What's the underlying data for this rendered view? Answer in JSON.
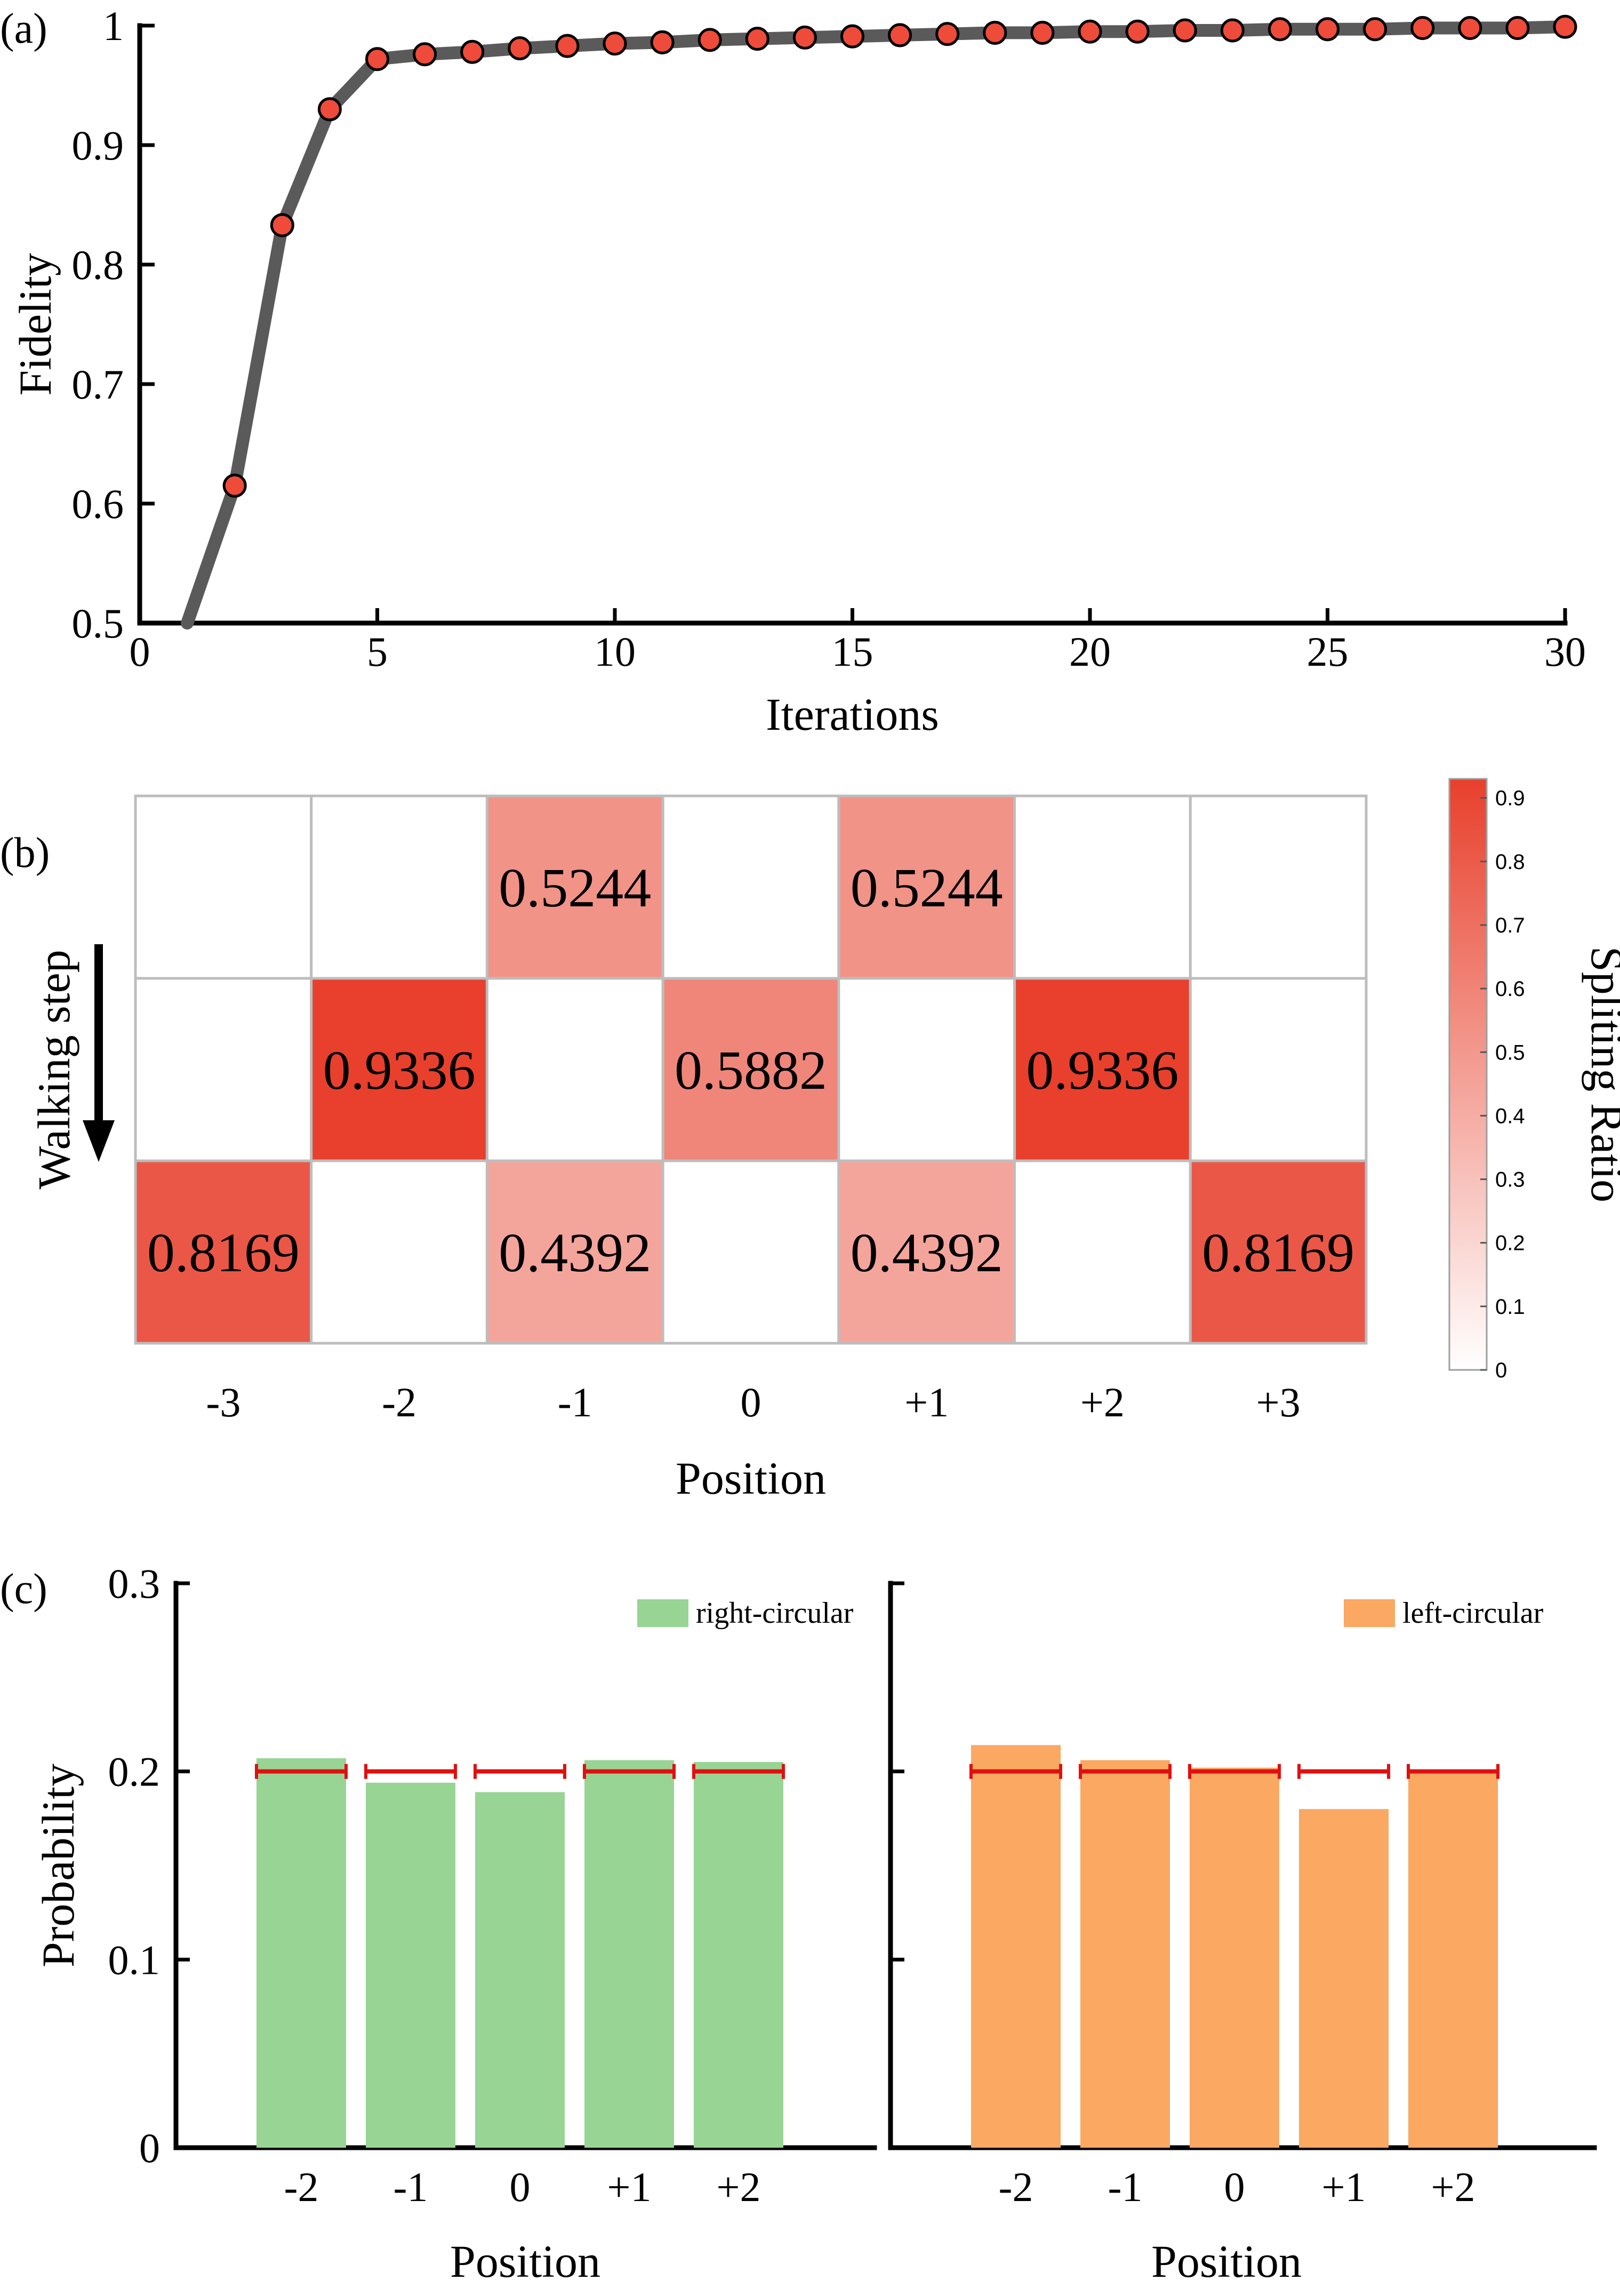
{
  "panels": {
    "a": {
      "label": "(a)"
    },
    "b": {
      "label": "(b)"
    },
    "c": {
      "label": "(c)"
    }
  },
  "colors": {
    "line": "#5a5a5a",
    "marker_fill": "#ee4b3a",
    "heat_max": "#e8402c",
    "grid": "#bdbdbd",
    "green": "#98d494",
    "orange": "#faa862",
    "ref_line": "#e01010"
  },
  "chart_data": [
    {
      "id": "a",
      "type": "line",
      "xlabel": "Iterations",
      "ylabel": "Fidelity",
      "xlim": [
        0,
        30
      ],
      "ylim": [
        0.5,
        1
      ],
      "xticks": [
        "0",
        "5",
        "10",
        "15",
        "20",
        "25",
        "30"
      ],
      "yticks": [
        "0.5",
        "0.6",
        "0.7",
        "0.8",
        "0.9",
        "1"
      ],
      "x": [
        1,
        2,
        3,
        4,
        5,
        6,
        7,
        8,
        9,
        10,
        11,
        12,
        13,
        14,
        15,
        16,
        17,
        18,
        19,
        20,
        21,
        22,
        23,
        24,
        25,
        26,
        27,
        28,
        29,
        30
      ],
      "y": [
        0.5,
        0.615,
        0.833,
        0.93,
        0.972,
        0.976,
        0.978,
        0.981,
        0.983,
        0.985,
        0.986,
        0.988,
        0.989,
        0.99,
        0.991,
        0.992,
        0.993,
        0.994,
        0.994,
        0.995,
        0.995,
        0.996,
        0.996,
        0.997,
        0.997,
        0.997,
        0.998,
        0.998,
        0.998,
        0.999
      ],
      "marker_x": [
        2,
        3,
        4,
        5,
        6,
        7,
        8,
        9,
        10,
        11,
        12,
        13,
        14,
        15,
        16,
        17,
        18,
        19,
        20,
        21,
        22,
        23,
        24,
        25,
        26,
        27,
        28,
        29,
        30
      ]
    },
    {
      "id": "b",
      "type": "heatmap",
      "xlabel": "Position",
      "ylabel": "Walking step",
      "columns": [
        "-3",
        "-2",
        "-1",
        "0",
        "+1",
        "+2",
        "+3"
      ],
      "values": [
        [
          null,
          null,
          0.5244,
          null,
          0.5244,
          null,
          null
        ],
        [
          null,
          0.9336,
          null,
          0.5882,
          null,
          0.9336,
          null
        ],
        [
          0.8169,
          null,
          0.4392,
          null,
          0.4392,
          null,
          0.8169
        ]
      ],
      "cell_labels": [
        [
          "",
          "",
          "0.5244",
          "",
          "0.5244",
          "",
          ""
        ],
        [
          "",
          "0.9336",
          "",
          "0.5882",
          "",
          "0.9336",
          ""
        ],
        [
          "0.8169",
          "",
          "0.4392",
          "",
          "0.4392",
          "",
          "0.8169"
        ]
      ],
      "colorbar": {
        "label": "Spliting Ratio",
        "range": [
          0,
          0.93
        ],
        "ticks": [
          "0",
          "0.1",
          "0.2",
          "0.3",
          "0.4",
          "0.5",
          "0.6",
          "0.7",
          "0.8",
          "0.9"
        ]
      }
    },
    {
      "id": "c",
      "type": "bar",
      "ylabel": "Probability",
      "ylim": [
        0,
        0.3
      ],
      "yticks": [
        "0",
        "0.1",
        "0.2",
        "0.3"
      ],
      "reference": 0.2,
      "panels": [
        {
          "legend": "right-circular",
          "xlabel": "Position",
          "categories": [
            "-2",
            "-1",
            "0",
            "+1",
            "+2"
          ],
          "values": [
            0.207,
            0.194,
            0.189,
            0.206,
            0.205
          ]
        },
        {
          "legend": "left-circular",
          "xlabel": "Position",
          "categories": [
            "-2",
            "-1",
            "0",
            "+1",
            "+2"
          ],
          "values": [
            0.214,
            0.206,
            0.202,
            0.18,
            0.201
          ]
        }
      ]
    }
  ]
}
